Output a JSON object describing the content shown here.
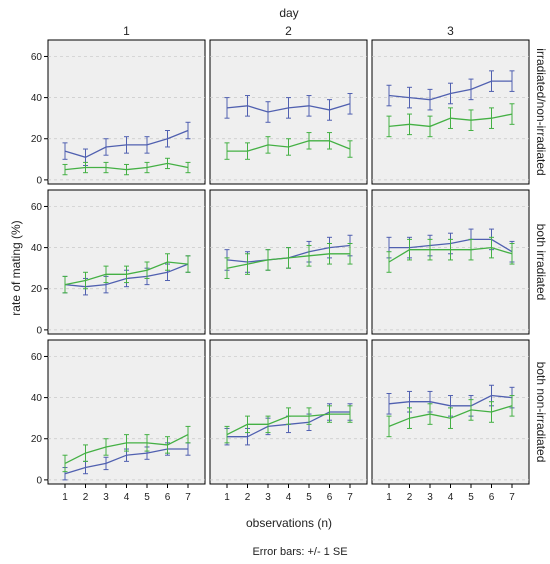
{
  "chart_data": {
    "type": "line",
    "title": "day",
    "xlabel": "observations (n)",
    "ylabel": "rate of mating (%)",
    "footnote": "Error bars: +/- 1 SE",
    "column_labels": [
      "1",
      "2",
      "3"
    ],
    "row_labels": [
      "irradiated/non-irradiated",
      "both irradiated",
      "both non-irradiated"
    ],
    "x": [
      1,
      2,
      3,
      4,
      5,
      6,
      7
    ],
    "x_ticks": [
      "1",
      "2",
      "3",
      "4",
      "5",
      "6",
      "7"
    ],
    "ylim": [
      -2,
      68
    ],
    "y_ticks": [
      "0",
      "20",
      "40",
      "60"
    ],
    "grid": true,
    "colors": {
      "blue": "#5060b0",
      "green": "#44b044"
    },
    "panels": [
      {
        "row": 0,
        "col": 0,
        "series": [
          {
            "color": "blue",
            "values": [
              14,
              11,
              16,
              17,
              17,
              20,
              24
            ],
            "se": [
              4,
              4,
              4,
              4,
              4,
              4,
              4
            ]
          },
          {
            "color": "green",
            "values": [
              5,
              6,
              6,
              5,
              6,
              8,
              6
            ],
            "se": [
              2.5,
              2.5,
              2.5,
              2.5,
              2.5,
              2.5,
              2.5
            ]
          }
        ]
      },
      {
        "row": 0,
        "col": 1,
        "series": [
          {
            "color": "blue",
            "values": [
              35,
              36,
              33,
              35,
              36,
              34,
              37
            ],
            "se": [
              5,
              5,
              5,
              5,
              5,
              5,
              5
            ]
          },
          {
            "color": "green",
            "values": [
              14,
              14,
              17,
              16,
              19,
              19,
              15
            ],
            "se": [
              4,
              4,
              4,
              4,
              4,
              4,
              4
            ]
          }
        ]
      },
      {
        "row": 0,
        "col": 2,
        "series": [
          {
            "color": "blue",
            "values": [
              41,
              40,
              39,
              42,
              44,
              48,
              48
            ],
            "se": [
              5,
              5,
              5,
              5,
              5,
              5,
              5
            ]
          },
          {
            "color": "green",
            "values": [
              26,
              27,
              26,
              30,
              29,
              30,
              32
            ],
            "se": [
              5,
              5,
              5,
              5,
              5,
              5,
              5
            ]
          }
        ]
      },
      {
        "row": 1,
        "col": 0,
        "series": [
          {
            "color": "blue",
            "values": [
              22,
              21,
              22,
              25,
              26,
              28,
              32
            ],
            "se": [
              4,
              4,
              4,
              4,
              4,
              4,
              4
            ]
          },
          {
            "color": "green",
            "values": [
              22,
              24,
              27,
              27,
              29,
              33,
              32
            ],
            "se": [
              4,
              4,
              4,
              4,
              4,
              4,
              4
            ]
          }
        ]
      },
      {
        "row": 1,
        "col": 1,
        "series": [
          {
            "color": "blue",
            "values": [
              34,
              33,
              34,
              35,
              38,
              40,
              41
            ],
            "se": [
              5,
              5,
              5,
              5,
              5,
              5,
              5
            ]
          },
          {
            "color": "green",
            "values": [
              30,
              32,
              34,
              35,
              36,
              37,
              37
            ],
            "se": [
              5,
              5,
              5,
              5,
              5,
              5,
              5
            ]
          }
        ]
      },
      {
        "row": 1,
        "col": 2,
        "series": [
          {
            "color": "blue",
            "values": [
              40,
              40,
              41,
              42,
              44,
              44,
              38
            ],
            "se": [
              5,
              5,
              5,
              5,
              5,
              5,
              5
            ]
          },
          {
            "color": "green",
            "values": [
              33,
              39,
              39,
              39,
              39,
              40,
              37
            ],
            "se": [
              5,
              5,
              5,
              5,
              5,
              5,
              5
            ]
          }
        ]
      },
      {
        "row": 2,
        "col": 0,
        "series": [
          {
            "color": "blue",
            "values": [
              3,
              6,
              8,
              12,
              13,
              15,
              15
            ],
            "se": [
              3,
              3,
              3,
              3,
              3,
              3,
              3
            ]
          },
          {
            "color": "green",
            "values": [
              8,
              13,
              16,
              18,
              18,
              17,
              22
            ],
            "se": [
              4,
              4,
              4,
              4,
              4,
              4,
              4
            ]
          }
        ]
      },
      {
        "row": 2,
        "col": 1,
        "series": [
          {
            "color": "blue",
            "values": [
              21,
              21,
              26,
              27,
              28,
              33,
              33
            ],
            "se": [
              4,
              4,
              4,
              4,
              4,
              4,
              4
            ]
          },
          {
            "color": "green",
            "values": [
              22,
              27,
              27,
              31,
              31,
              32,
              32
            ],
            "se": [
              4,
              4,
              4,
              4,
              4,
              4,
              4
            ]
          }
        ]
      },
      {
        "row": 2,
        "col": 2,
        "series": [
          {
            "color": "blue",
            "values": [
              37,
              38,
              38,
              36,
              36,
              41,
              40
            ],
            "se": [
              5,
              5,
              5,
              5,
              5,
              5,
              5
            ]
          },
          {
            "color": "green",
            "values": [
              26,
              30,
              32,
              30,
              34,
              33,
              36
            ],
            "se": [
              5,
              5,
              5,
              5,
              5,
              5,
              5
            ]
          }
        ]
      }
    ]
  }
}
